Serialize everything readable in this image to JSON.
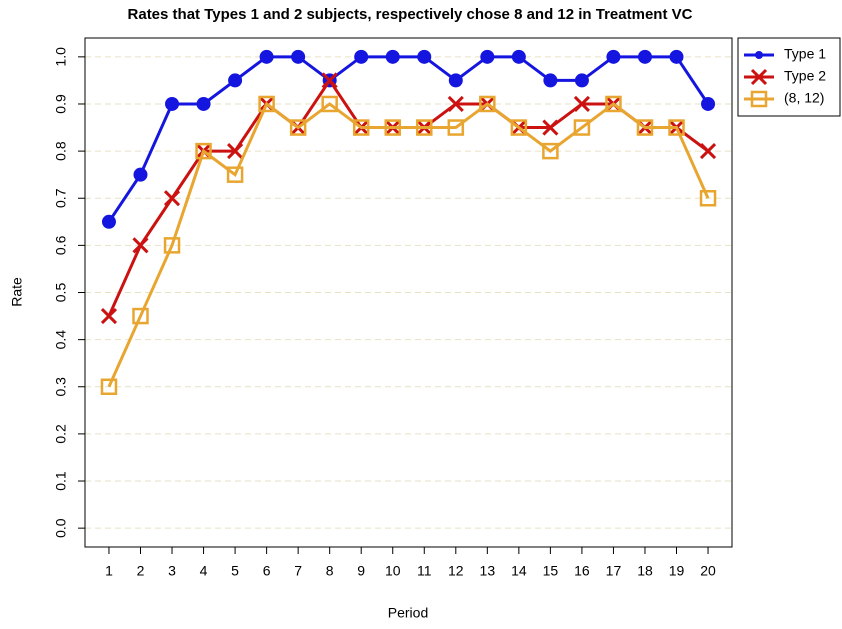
{
  "chart_data": {
    "type": "line",
    "title": "Rates that Types 1 and 2 subjects, respectively chose 8 and 12 in Treatment VC",
    "x_label": "Period",
    "y_label": "Rate",
    "x": [
      1,
      2,
      3,
      4,
      5,
      6,
      7,
      8,
      9,
      10,
      11,
      12,
      13,
      14,
      15,
      16,
      17,
      18,
      19,
      20
    ],
    "xlim": [
      0.24,
      20.76
    ],
    "xticks": [
      1,
      2,
      3,
      4,
      5,
      6,
      7,
      8,
      9,
      10,
      11,
      12,
      13,
      14,
      15,
      16,
      17,
      18,
      19,
      20
    ],
    "ylim": [
      -0.04,
      1.04
    ],
    "yticks": [
      {
        "value": 0,
        "label": "0.0"
      },
      0.1,
      0.2,
      0.3,
      0.4,
      0.5,
      0.6,
      0.7,
      0.8,
      0.9,
      {
        "value": 1,
        "label": "1.0"
      }
    ],
    "grid": true,
    "legend_position": "right",
    "series": [
      {
        "name": "Type 1",
        "color": "#1515e0",
        "marker": "circle",
        "values": [
          0.65,
          0.75,
          0.9,
          0.9,
          0.95,
          1,
          1,
          0.95,
          1,
          1,
          1,
          0.95,
          1,
          1,
          0.95,
          0.95,
          1,
          1,
          1,
          0.9
        ]
      },
      {
        "name": "Type 2",
        "color": "#cc1111",
        "marker": "x",
        "values": [
          0.45,
          0.6,
          0.7,
          0.8,
          0.8,
          0.9,
          0.85,
          0.95,
          0.85,
          0.85,
          0.85,
          0.9,
          0.9,
          0.85,
          0.85,
          0.9,
          0.9,
          0.85,
          0.85,
          0.8
        ]
      },
      {
        "name": "(8, 12)",
        "color": "#e8a630",
        "marker": "square",
        "values": [
          0.3,
          0.45,
          0.6,
          0.8,
          0.75,
          0.9,
          0.85,
          0.9,
          0.85,
          0.85,
          0.85,
          0.85,
          0.9,
          0.85,
          0.8,
          0.85,
          0.9,
          0.85,
          0.85,
          0.7
        ]
      }
    ]
  }
}
